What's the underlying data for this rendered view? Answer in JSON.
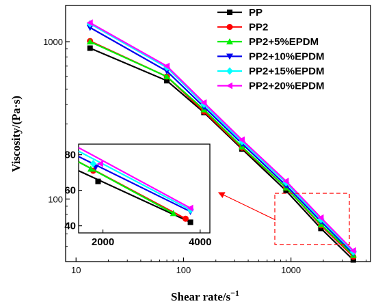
{
  "chart_data": {
    "type": "line",
    "xlabel": "Shear rate/s",
    "xlabel_superscript": "−1",
    "ylabel": "Viscosity/(Pa·s)",
    "x_scale": "log",
    "y_scale": "log",
    "xlim": [
      8,
      5500
    ],
    "ylim": [
      40,
      1700
    ],
    "x_ticks": [
      {
        "value": 10,
        "label": "10"
      },
      {
        "value": 100,
        "label": "100"
      },
      {
        "value": 1000,
        "label": "1000"
      }
    ],
    "y_ticks": [
      {
        "value": 100,
        "label": "100"
      },
      {
        "value": 1000,
        "label": "1000"
      }
    ],
    "x": [
      13.5,
      70,
      155,
      350,
      900,
      1900,
      3800
    ],
    "series": [
      {
        "name": "PP",
        "color": "#000000",
        "marker": "square",
        "values": [
          910,
          565,
          355,
          208,
          113,
          65,
          41
        ]
      },
      {
        "name": "PP2",
        "color": "#ff0000",
        "marker": "circle",
        "values": [
          1010,
          600,
          360,
          212,
          118,
          68,
          43
        ]
      },
      {
        "name": "PP2+5%EPDM",
        "color": "#00ee00",
        "marker": "triangle-up",
        "values": [
          1000,
          600,
          370,
          215,
          118,
          69,
          44
        ]
      },
      {
        "name": "PP2+10%EPDM",
        "color": "#0000ee",
        "marker": "triangle-down",
        "values": [
          1230,
          650,
          385,
          225,
          122,
          72,
          45
        ]
      },
      {
        "name": "PP2+15%EPDM",
        "color": "#00ffff",
        "marker": "diamond",
        "values": [
          1300,
          685,
          400,
          232,
          127,
          74,
          46
        ]
      },
      {
        "name": "PP2+20%EPDM",
        "color": "#ff00ff",
        "marker": "triangle-left",
        "values": [
          1320,
          700,
          410,
          238,
          130,
          76,
          47
        ]
      }
    ],
    "legend_position": "top-right",
    "inset": {
      "x_ticks": [
        {
          "value": 2000,
          "label": "2000"
        },
        {
          "value": 4000,
          "label": "4000"
        }
      ],
      "y_ticks": [
        {
          "value": 40,
          "label": "40"
        },
        {
          "value": 60,
          "label": "60"
        },
        {
          "value": 80,
          "label": "80"
        }
      ],
      "xlim": [
        1500,
        4200
      ],
      "ylim": [
        36,
        86
      ],
      "start": [
        {
          "name": "PP",
          "x": 1500,
          "y": 71
        },
        {
          "name": "PP2",
          "x": 1500,
          "y": 76
        },
        {
          "name": "PP2+5%EPDM",
          "x": 1500,
          "y": 76
        },
        {
          "name": "PP2+10%EPDM",
          "x": 1500,
          "y": 79
        },
        {
          "name": "PP2+15%EPDM",
          "x": 1500,
          "y": 82
        },
        {
          "name": "PP2+20%EPDM",
          "x": 1500,
          "y": 84
        }
      ],
      "end": [
        {
          "name": "PP",
          "x": 3800,
          "y": 42
        },
        {
          "name": "PP2",
          "x": 3700,
          "y": 44
        },
        {
          "name": "PP2+5%EPDM",
          "x": 3450,
          "y": 47
        },
        {
          "name": "PP2+10%EPDM",
          "x": 3800,
          "y": 48
        },
        {
          "name": "PP2+15%EPDM",
          "x": 3800,
          "y": 49
        },
        {
          "name": "PP2+20%EPDM",
          "x": 3800,
          "y": 50
        }
      ],
      "markers": [
        {
          "name": "PP",
          "x": 1900,
          "y": 65
        },
        {
          "name": "PP2",
          "x": 1800,
          "y": 71
        },
        {
          "name": "PP2+5%EPDM",
          "x": 1750,
          "y": 72
        },
        {
          "name": "PP2+10%EPDM",
          "x": 1850,
          "y": 73
        },
        {
          "name": "PP2+15%EPDM",
          "x": 1800,
          "y": 75
        },
        {
          "name": "PP2+20%EPDM",
          "x": 1950,
          "y": 75
        }
      ]
    }
  }
}
